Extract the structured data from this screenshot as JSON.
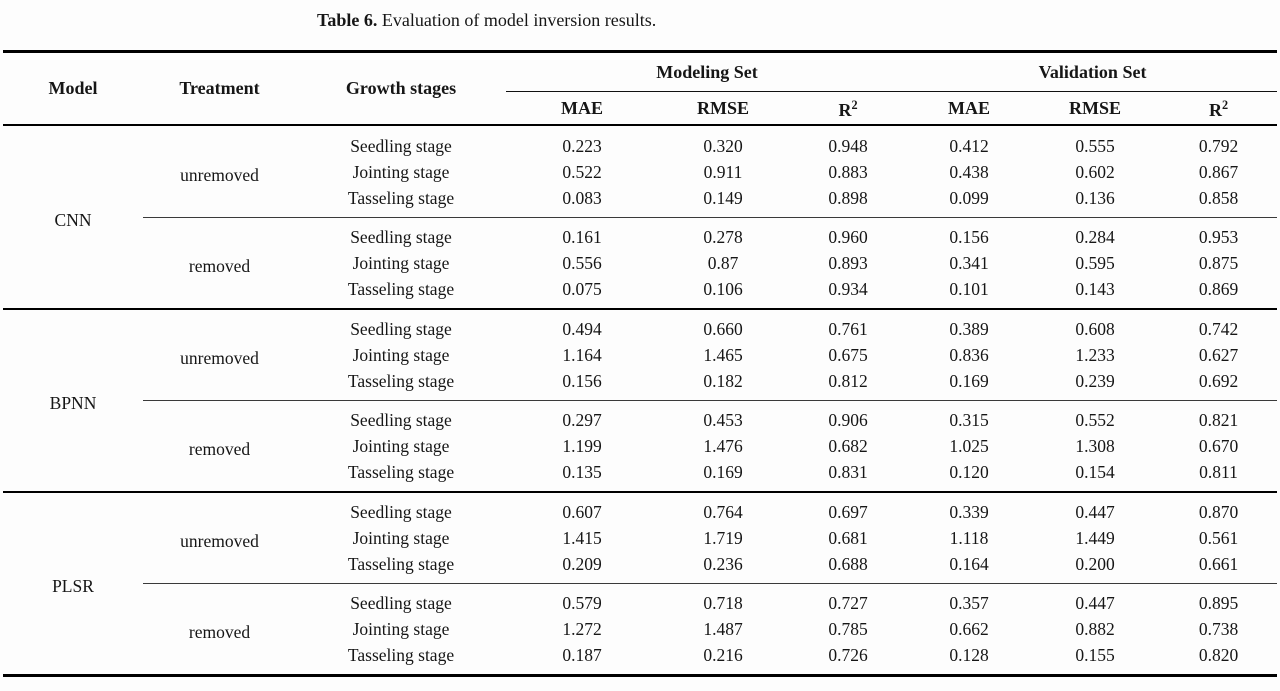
{
  "title": {
    "label": "Table 6.",
    "text": "Evaluation of model inversion results."
  },
  "table": {
    "header": {
      "model": "Model",
      "treatment": "Treatment",
      "growth_stages": "Growth stages",
      "modeling_set": "Modeling Set",
      "validation_set": "Validation Set",
      "metrics": [
        "MAE",
        "RMSE"
      ],
      "r_base": "R",
      "r_sup": "2"
    },
    "sections": [
      {
        "model": "CNN",
        "groups": [
          {
            "treatment": "unremoved",
            "rows": [
              {
                "stage": "Seedling stage",
                "values": [
                  "0.223",
                  "0.320",
                  "0.948",
                  "0.412",
                  "0.555",
                  "0.792"
                ]
              },
              {
                "stage": "Jointing stage",
                "values": [
                  "0.522",
                  "0.911",
                  "0.883",
                  "0.438",
                  "0.602",
                  "0.867"
                ]
              },
              {
                "stage": "Tasseling stage",
                "values": [
                  "0.083",
                  "0.149",
                  "0.898",
                  "0.099",
                  "0.136",
                  "0.858"
                ]
              }
            ]
          },
          {
            "treatment": "removed",
            "rows": [
              {
                "stage": "Seedling stage",
                "values": [
                  "0.161",
                  "0.278",
                  "0.960",
                  "0.156",
                  "0.284",
                  "0.953"
                ]
              },
              {
                "stage": "Jointing stage",
                "values": [
                  "0.556",
                  "0.87",
                  "0.893",
                  "0.341",
                  "0.595",
                  "0.875"
                ]
              },
              {
                "stage": "Tasseling stage",
                "values": [
                  "0.075",
                  "0.106",
                  "0.934",
                  "0.101",
                  "0.143",
                  "0.869"
                ]
              }
            ]
          }
        ]
      },
      {
        "model": "BPNN",
        "groups": [
          {
            "treatment": "unremoved",
            "rows": [
              {
                "stage": "Seedling stage",
                "values": [
                  "0.494",
                  "0.660",
                  "0.761",
                  "0.389",
                  "0.608",
                  "0.742"
                ]
              },
              {
                "stage": "Jointing stage",
                "values": [
                  "1.164",
                  "1.465",
                  "0.675",
                  "0.836",
                  "1.233",
                  "0.627"
                ]
              },
              {
                "stage": "Tasseling stage",
                "values": [
                  "0.156",
                  "0.182",
                  "0.812",
                  "0.169",
                  "0.239",
                  "0.692"
                ]
              }
            ]
          },
          {
            "treatment": "removed",
            "rows": [
              {
                "stage": "Seedling stage",
                "values": [
                  "0.297",
                  "0.453",
                  "0.906",
                  "0.315",
                  "0.552",
                  "0.821"
                ]
              },
              {
                "stage": "Jointing stage",
                "values": [
                  "1.199",
                  "1.476",
                  "0.682",
                  "1.025",
                  "1.308",
                  "0.670"
                ]
              },
              {
                "stage": "Tasseling stage",
                "values": [
                  "0.135",
                  "0.169",
                  "0.831",
                  "0.120",
                  "0.154",
                  "0.811"
                ]
              }
            ]
          }
        ]
      },
      {
        "model": "PLSR",
        "groups": [
          {
            "treatment": "unremoved",
            "rows": [
              {
                "stage": "Seedling stage",
                "values": [
                  "0.607",
                  "0.764",
                  "0.697",
                  "0.339",
                  "0.447",
                  "0.870"
                ]
              },
              {
                "stage": "Jointing stage",
                "values": [
                  "1.415",
                  "1.719",
                  "0.681",
                  "1.118",
                  "1.449",
                  "0.561"
                ]
              },
              {
                "stage": "Tasseling stage",
                "values": [
                  "0.209",
                  "0.236",
                  "0.688",
                  "0.164",
                  "0.200",
                  "0.661"
                ]
              }
            ]
          },
          {
            "treatment": "removed",
            "rows": [
              {
                "stage": "Seedling stage",
                "values": [
                  "0.579",
                  "0.718",
                  "0.727",
                  "0.357",
                  "0.447",
                  "0.895"
                ]
              },
              {
                "stage": "Jointing stage",
                "values": [
                  "1.272",
                  "1.487",
                  "0.785",
                  "0.662",
                  "0.882",
                  "0.738"
                ]
              },
              {
                "stage": "Tasseling stage",
                "values": [
                  "0.187",
                  "0.216",
                  "0.726",
                  "0.128",
                  "0.155",
                  "0.820"
                ]
              }
            ]
          }
        ]
      }
    ]
  }
}
